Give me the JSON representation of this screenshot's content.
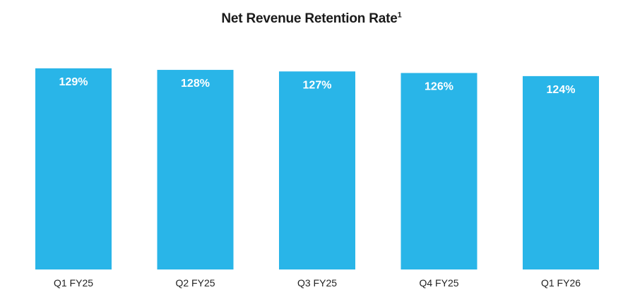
{
  "chart_data": {
    "type": "bar",
    "title": "Net Revenue Retention Rate",
    "title_superscript": "1",
    "categories": [
      "Q1 FY25",
      "Q2 FY25",
      "Q3 FY25",
      "Q4 FY25",
      "Q1 FY26"
    ],
    "values": [
      129,
      128,
      127,
      126,
      124
    ],
    "value_labels": [
      "129%",
      "128%",
      "127%",
      "126%",
      "124%"
    ],
    "xlabel": "",
    "ylabel": "",
    "ylim": [
      0,
      133
    ],
    "grid": false,
    "legend": "none",
    "bar_color": "#29B5E8"
  }
}
